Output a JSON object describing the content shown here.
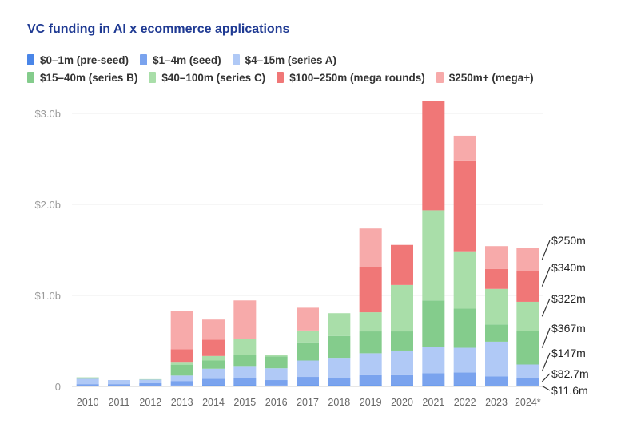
{
  "chart_data": {
    "type": "bar",
    "stacked": true,
    "title": "VC funding in AI x ecommerce applications",
    "xlabel": "",
    "ylabel": "",
    "ylim": [
      0,
      3.0
    ],
    "y_ticks": [
      {
        "value": 0,
        "label": "0"
      },
      {
        "value": 1.0,
        "label": "$1.0b"
      },
      {
        "value": 2.0,
        "label": "$2.0b"
      },
      {
        "value": 3.0,
        "label": "$3.0b"
      }
    ],
    "grid": true,
    "legend_position": "top",
    "categories": [
      "2010",
      "2011",
      "2012",
      "2013",
      "2014",
      "2015",
      "2016",
      "2017",
      "2018",
      "2019",
      "2020",
      "2021",
      "2022",
      "2023",
      "2024*"
    ],
    "series": [
      {
        "name": "$0–1m (pre-seed)",
        "color": "#4a86e8",
        "values": [
          0.005,
          0.005,
          0.005,
          0.01,
          0.015,
          0.015,
          0.01,
          0.015,
          0.015,
          0.015,
          0.015,
          0.015,
          0.015,
          0.012,
          0.0116
        ]
      },
      {
        "name": "$1–4m (seed)",
        "color": "#7aa3ee",
        "values": [
          0.02,
          0.02,
          0.03,
          0.05,
          0.07,
          0.08,
          0.06,
          0.09,
          0.08,
          0.11,
          0.11,
          0.13,
          0.14,
          0.1,
          0.0827
        ]
      },
      {
        "name": "$4–15m (series A)",
        "color": "#b0c9f6",
        "values": [
          0.06,
          0.045,
          0.04,
          0.06,
          0.11,
          0.13,
          0.13,
          0.18,
          0.22,
          0.24,
          0.27,
          0.29,
          0.27,
          0.38,
          0.147
        ]
      },
      {
        "name": "$15–40m (series B)",
        "color": "#84cc8c",
        "values": [
          0.01,
          0,
          0,
          0.12,
          0.09,
          0.12,
          0.13,
          0.2,
          0.24,
          0.24,
          0.21,
          0.51,
          0.43,
          0.19,
          0.367
        ]
      },
      {
        "name": "$40–100m (series C)",
        "color": "#a9dea9",
        "values": [
          0.005,
          0,
          0.005,
          0.03,
          0.05,
          0.18,
          0.02,
          0.13,
          0.25,
          0.21,
          0.51,
          0.99,
          0.63,
          0.39,
          0.322
        ]
      },
      {
        "name": "$100–250m (mega rounds)",
        "color": "#f07777",
        "values": [
          0,
          0,
          0,
          0.14,
          0.18,
          0,
          0,
          0,
          0,
          0.5,
          0.44,
          1.2,
          0.99,
          0.22,
          0.34
        ]
      },
      {
        "name": "$250m+ (mega+)",
        "color": "#f7aaaa",
        "values": [
          0,
          0,
          0,
          0.42,
          0.22,
          0.42,
          0,
          0.25,
          0,
          0.42,
          0,
          0,
          0.28,
          0.25,
          0.25
        ]
      }
    ],
    "annotations": [
      "$250m",
      "$340m",
      "$322m",
      "$367m",
      "$147m",
      "$82.7m",
      "$11.6m"
    ]
  }
}
